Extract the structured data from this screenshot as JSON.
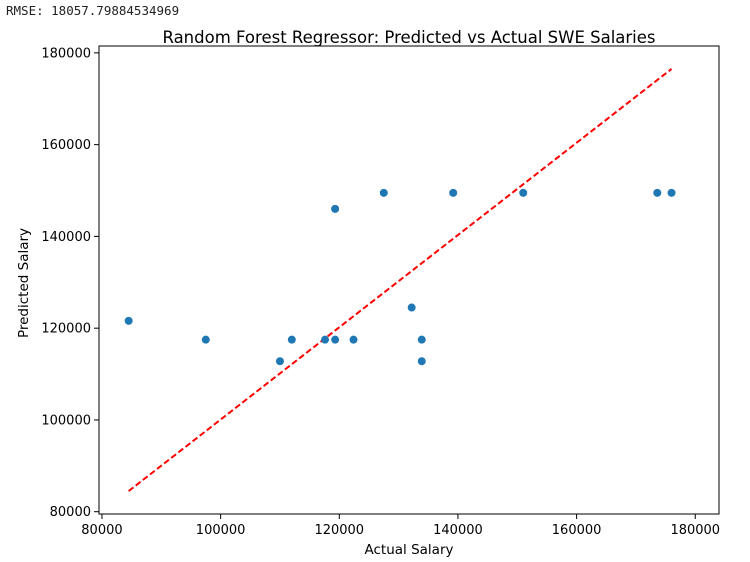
{
  "output": {
    "rmse_text": "RMSE: 18057.79884534969"
  },
  "chart_data": {
    "type": "scatter",
    "title": "Random Forest Regressor: Predicted vs Actual SWE Salaries",
    "xlabel": "Actual Salary",
    "ylabel": "Predicted Salary",
    "xlim": [
      79500,
      184000
    ],
    "ylim": [
      79500,
      181500
    ],
    "xticks": [
      80000,
      100000,
      120000,
      140000,
      160000,
      180000
    ],
    "yticks": [
      80000,
      100000,
      120000,
      140000,
      160000,
      180000
    ],
    "grid": false,
    "point_color": "#1f77b4",
    "reference_line": {
      "from": [
        84500,
        84500
      ],
      "to": [
        176000,
        176500
      ],
      "color": "#ff0000",
      "style": "dashed"
    },
    "points": [
      {
        "x": 84500,
        "y": 121600
      },
      {
        "x": 97500,
        "y": 117500
      },
      {
        "x": 110000,
        "y": 112800
      },
      {
        "x": 112000,
        "y": 117500
      },
      {
        "x": 117600,
        "y": 117500
      },
      {
        "x": 119300,
        "y": 146000
      },
      {
        "x": 119300,
        "y": 117500
      },
      {
        "x": 122400,
        "y": 117500
      },
      {
        "x": 127500,
        "y": 149500
      },
      {
        "x": 132200,
        "y": 124500
      },
      {
        "x": 133900,
        "y": 117500
      },
      {
        "x": 133900,
        "y": 112800
      },
      {
        "x": 139200,
        "y": 149500
      },
      {
        "x": 151000,
        "y": 149500
      },
      {
        "x": 173600,
        "y": 149500
      },
      {
        "x": 176000,
        "y": 149500
      }
    ]
  }
}
